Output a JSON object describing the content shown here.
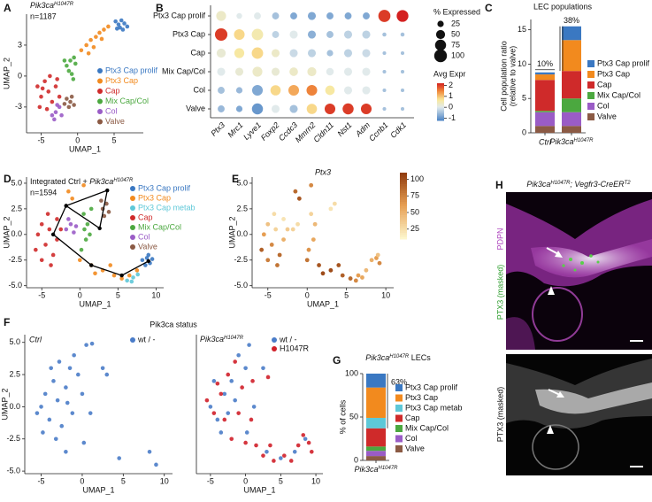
{
  "panel_labels": [
    "A",
    "B",
    "C",
    "D",
    "E",
    "F",
    "G",
    "H"
  ],
  "chart_data": [
    {
      "type": "scatter",
      "title": [
        "Pik3ca",
        "H1047R"
      ],
      "subtitle": "n=1187",
      "x_label": "UMAP_1",
      "y_label": "UMAP_2",
      "xlim": [
        -7,
        9
      ],
      "ylim": [
        -5.5,
        6
      ],
      "xticks": [
        -5,
        0,
        5
      ],
      "yticks": [
        -3,
        0,
        3
      ],
      "series": [
        {
          "name": "Ptx3 Cap prolif",
          "color": "#3a78c2",
          "x": [
            5.2,
            5.6,
            6.0,
            6.4,
            6.8,
            5.8,
            6.2,
            5.4
          ],
          "y": [
            5.3,
            5.0,
            5.4,
            5.1,
            4.8,
            4.7,
            4.5,
            4.6
          ]
        },
        {
          "name": "Ptx3 Cap",
          "color": "#f28a1e",
          "x": [
            0.5,
            1.2,
            1.8,
            2.5,
            3.0,
            3.6,
            4.2,
            2.2,
            1.5,
            3.3
          ],
          "y": [
            2.5,
            3.0,
            3.5,
            3.8,
            4.2,
            4.5,
            4.8,
            2.8,
            2.2,
            3.6
          ]
        },
        {
          "name": "Cap",
          "color": "#cf2a2a",
          "x": [
            -5.5,
            -5,
            -4.5,
            -4,
            -3.5,
            -3,
            -2.5,
            -5.2,
            -4.2,
            -3.8,
            -2.8,
            -4.8
          ],
          "y": [
            -1,
            -2,
            -0.5,
            -1.5,
            -2.5,
            -1,
            -2,
            -3,
            -3.2,
            0,
            -0.3,
            -1.2
          ]
        },
        {
          "name": "Mix Cap/Col",
          "color": "#4ba83f",
          "x": [
            -1.5,
            -1.0,
            -0.5,
            -1.2,
            -0.8,
            -0.3,
            -1.8,
            -0.6
          ],
          "y": [
            1.0,
            1.5,
            1.8,
            0.5,
            0.2,
            1.2,
            1.5,
            -0.3
          ]
        },
        {
          "name": "Col",
          "color": "#9a5cc6",
          "x": [
            -3.5,
            -3,
            -2.5,
            -2.2,
            -3.2,
            -2.8
          ],
          "y": [
            -3.8,
            -3.5,
            -3,
            -3.8,
            -4.2,
            -2.8
          ]
        },
        {
          "name": "Valve",
          "color": "#8b5a44",
          "x": [
            -1.5,
            -1,
            -0.5,
            -1.2,
            -0.8,
            -1.8
          ],
          "y": [
            -2.2,
            -2.5,
            -2.8,
            -3,
            -2,
            -2.7
          ]
        }
      ]
    },
    {
      "type": "dot",
      "categories": [
        "Ptx3",
        "Mrc1",
        "Lyve1",
        "Foxp2",
        "Ccdc3",
        "Mmrn2",
        "Cldn11",
        "Nst1",
        "Adm",
        "Ccnb1",
        "Cdk1"
      ],
      "size_title": "% Expressed",
      "size_ticks": [
        25,
        50,
        75,
        100
      ],
      "color_title": "Avg Expr",
      "color_lim": [
        -1.2,
        2.2
      ],
      "color_ticks": [
        -1,
        0,
        1,
        2
      ],
      "series": [
        {
          "name": "Ptx3 Cap prolif",
          "values": [
            0.3,
            0,
            0,
            -0.5,
            -0.8,
            -0.8,
            -0.8,
            -0.8,
            -0.8,
            2,
            2.2
          ],
          "pct": [
            60,
            20,
            30,
            30,
            30,
            40,
            30,
            30,
            30,
            90,
            85
          ]
        },
        {
          "name": "Ptx3 Cap",
          "values": [
            2,
            0.8,
            0.5,
            -0.3,
            0,
            -0.7,
            -0.5,
            -0.3,
            -0.3,
            -0.5,
            -0.5
          ],
          "pct": [
            95,
            70,
            80,
            30,
            40,
            40,
            30,
            40,
            40,
            10,
            10
          ]
        },
        {
          "name": "Cap",
          "values": [
            0.2,
            0.6,
            0.8,
            0.3,
            -0.2,
            -0.3,
            -0.5,
            -0.3,
            -0.2,
            -0.5,
            -0.5
          ],
          "pct": [
            50,
            60,
            80,
            40,
            40,
            40,
            25,
            40,
            40,
            8,
            8
          ]
        },
        {
          "name": "Mix Cap/Col",
          "values": [
            0,
            0.2,
            0.3,
            0.2,
            0.3,
            0.3,
            0,
            0,
            0,
            -0.5,
            -0.5
          ],
          "pct": [
            40,
            40,
            60,
            40,
            45,
            50,
            35,
            40,
            40,
            8,
            8
          ]
        },
        {
          "name": "Col",
          "values": [
            -0.5,
            -0.6,
            -0.8,
            0.8,
            1.2,
            1.5,
            0.6,
            0,
            0,
            -0.5,
            -0.5
          ],
          "pct": [
            30,
            25,
            70,
            65,
            70,
            70,
            55,
            40,
            40,
            8,
            8
          ]
        },
        {
          "name": "Valve",
          "values": [
            -0.6,
            -0.8,
            -1,
            0,
            -0.5,
            0.8,
            2,
            2,
            2,
            -0.5,
            -0.5
          ],
          "pct": [
            30,
            25,
            75,
            40,
            40,
            65,
            70,
            75,
            70,
            8,
            8
          ]
        }
      ]
    },
    {
      "type": "stacked_bar",
      "title": "LEC populations",
      "y_label": [
        "Cell population ratio",
        "(relative to valve)"
      ],
      "categories": [
        "Ctrl",
        [
          "Pik3ca",
          "H1047R"
        ]
      ],
      "ylim": [
        0,
        16.5
      ],
      "yticks": [
        0,
        5,
        10,
        15
      ],
      "annotations": [
        "10%",
        "38%"
      ],
      "series": [
        {
          "name": "Valve",
          "color": "#8b5a44",
          "values": [
            1,
            1
          ]
        },
        {
          "name": "Col",
          "color": "#9a5cc6",
          "values": [
            2,
            2
          ]
        },
        {
          "name": "Mix Cap/Col",
          "color": "#4ba83f",
          "values": [
            0.2,
            2
          ]
        },
        {
          "name": "Cap",
          "color": "#cf2a2a",
          "values": [
            4.5,
            4
          ]
        },
        {
          "name": "Ptx3 Cap",
          "color": "#f28a1e",
          "values": [
            0.8,
            4.5
          ]
        },
        {
          "name": "Ptx3 Cap prolif",
          "color": "#3a78c2",
          "values": [
            0.3,
            2
          ]
        }
      ]
    },
    {
      "type": "scatter",
      "title": [
        "Integrated Ctrl + ",
        "Pik3ca",
        "H1047R"
      ],
      "subtitle": "n=1594",
      "x_label": "UMAP_1",
      "y_label": "UMAP_2",
      "xlim": [
        -7,
        11
      ],
      "ylim": [
        -5.2,
        5.6
      ],
      "xticks": [
        -5,
        0,
        5,
        10
      ],
      "yticks": [
        {
          "value": -5,
          "label": "-5.0"
        },
        -2.5,
        {
          "value": 0,
          "label": "0.0"
        },
        2.5,
        {
          "value": 5,
          "label": "5.0"
        }
      ],
      "series": [
        {
          "name": "Ptx3 Cap prolif",
          "color": "#3a78c2",
          "x": [
            8.2,
            8.8,
            9.2,
            8.6,
            9.5,
            9
          ],
          "y": [
            -2.5,
            -2.3,
            -2.8,
            -3,
            -2.4,
            -2
          ]
        },
        {
          "name": "Ptx3 Cap",
          "color": "#f28a1e",
          "x": [
            0,
            1.5,
            3,
            4.5,
            5.5,
            6.5,
            7.5,
            2,
            4,
            -1,
            0.5,
            -1.5
          ],
          "y": [
            -2.5,
            -3,
            -3.5,
            -4,
            -4.3,
            -4,
            -3.5,
            -3.8,
            -3,
            3.5,
            4.8,
            4.2
          ]
        },
        {
          "name": "Ptx3 Cap metab",
          "color": "#5ec8d8",
          "x": [
            6.2,
            7,
            7.6,
            6.8
          ],
          "y": [
            -4.5,
            -4.2,
            -3.9,
            -4.6
          ]
        },
        {
          "name": "Cap",
          "color": "#cf2a2a",
          "x": [
            -5.5,
            -5,
            -4.5,
            -4,
            -3.5,
            -3,
            -5,
            -4.2,
            -3,
            -2.5,
            -5.8,
            -3.8
          ],
          "y": [
            0,
            1,
            -1,
            0.5,
            -2,
            1.5,
            -2.5,
            2,
            -0.5,
            0.5,
            -1.5,
            -3
          ]
        },
        {
          "name": "Mix Cap/Col",
          "color": "#4ba83f",
          "x": [
            0.5,
            1,
            0.8,
            1.3,
            0.2,
            1.5,
            0.6
          ],
          "y": [
            2,
            1,
            -0.5,
            0,
            -1.5,
            2.5,
            0.5
          ]
        },
        {
          "name": "Col",
          "color": "#9a5cc6",
          "x": [
            -1.8,
            -1.2,
            -0.8,
            -1.5,
            -0.5
          ],
          "y": [
            0.5,
            1,
            0.2,
            1.5,
            0.8
          ]
        },
        {
          "name": "Valve",
          "color": "#8b5a44",
          "x": [
            3,
            3.5,
            2.8,
            3.8,
            3.2
          ],
          "y": [
            2.5,
            3,
            3.3,
            2.2,
            1.8
          ]
        }
      ],
      "trajectory": {
        "x": [
          9,
          5.5,
          1.5,
          -3.5,
          -1.8,
          3.6,
          2.6,
          -1.8
        ],
        "y": [
          -2.6,
          -4,
          -3,
          0,
          2.8,
          4.3,
          0.6,
          2.8
        ]
      }
    },
    {
      "type": "feature",
      "title": "Ptx3",
      "x_label": "UMAP_1",
      "y_label": "UMAP_2",
      "xlim": [
        -7,
        11
      ],
      "ylim": [
        -5.2,
        5.6
      ],
      "xticks": [
        -5,
        0,
        5,
        10
      ],
      "yticks": [
        {
          "value": -5,
          "label": "-5.0"
        },
        -2.5,
        {
          "value": 0,
          "label": "0.0"
        },
        2.5,
        {
          "value": 5,
          "label": "5.0"
        }
      ],
      "color_lim": [
        10,
        110
      ],
      "color_ticks": [
        25,
        50,
        75,
        100
      ],
      "x": [
        -5.5,
        -5,
        -4.5,
        -4,
        -3.5,
        -3,
        -5,
        -4.2,
        -3,
        -2.5,
        -5.8,
        -3.8,
        -1.8,
        -1.2,
        0.5,
        1,
        0.8,
        0.2,
        -1,
        0.5,
        -1.5,
        3,
        3.5,
        0,
        1.5,
        3,
        4.5,
        5.5,
        6.5,
        7.5,
        2,
        4,
        8.2,
        8.8,
        9.2,
        9,
        6.2,
        7
      ],
      "y": [
        0,
        1,
        -1,
        0.5,
        -2,
        1.5,
        -2.5,
        2,
        -0.5,
        0.5,
        -1.5,
        -3,
        0.5,
        1,
        2,
        1,
        -0.5,
        -1.5,
        3.5,
        4.8,
        4.2,
        2.5,
        3,
        -2.5,
        -3,
        -3.5,
        -4,
        -4.3,
        -4,
        -3.5,
        -3.8,
        -3,
        -2.5,
        -2.3,
        -2.8,
        -2,
        -4.5,
        -4.2
      ],
      "values": [
        60,
        40,
        70,
        30,
        85,
        20,
        75,
        25,
        50,
        35,
        90,
        80,
        30,
        25,
        30,
        45,
        55,
        65,
        95,
        70,
        85,
        20,
        25,
        80,
        95,
        100,
        90,
        85,
        60,
        45,
        100,
        95,
        50,
        60,
        70,
        40,
        70,
        55
      ]
    },
    {
      "type": "scatter",
      "title": "Pik3ca status",
      "subtitle": "Ctrl",
      "x_label": "UMAP_1",
      "y_label": "UMAP_2",
      "xlim": [
        -7,
        11
      ],
      "ylim": [
        -5.2,
        5.6
      ],
      "xticks": [
        -5,
        0,
        5,
        10
      ],
      "yticks": [
        {
          "value": -5,
          "label": "-5.0"
        },
        -2.5,
        {
          "value": 0,
          "label": "0.0"
        },
        2.5,
        {
          "value": 5,
          "label": "5.0"
        }
      ],
      "series": [
        {
          "name": "wt / -",
          "color": "#4a7cc8",
          "x": [
            -5,
            -4.5,
            -4,
            -3.5,
            -3,
            -2.5,
            -2,
            -1.5,
            -1,
            -0.5,
            0,
            -4.8,
            -3.8,
            -2.8,
            -1.2,
            0.5,
            1.2,
            2.5,
            3,
            -3.2,
            -2,
            -5.5,
            0.2,
            4.5,
            8.2,
            9,
            -1.8,
            1
          ],
          "y": [
            0,
            1,
            -1,
            2,
            0.5,
            -1.5,
            1.5,
            3,
            4,
            2.5,
            1,
            -2,
            3,
            3.5,
            -0.5,
            4.8,
            4.9,
            3,
            2.5,
            -2.5,
            -3.5,
            -0.5,
            -2.8,
            -4,
            -3.5,
            -4.5,
            0.3,
            -0.5
          ]
        }
      ]
    },
    {
      "type": "scatter",
      "subtitle": [
        "Pik3ca",
        "H1047R"
      ],
      "x_label": "UMAP_1",
      "xlim": [
        -7,
        11
      ],
      "ylim": [
        -5.2,
        5.6
      ],
      "xticks": [
        -5,
        0,
        5,
        10
      ],
      "series": [
        {
          "name": "wt / -",
          "color": "#4a7cc8",
          "x": [
            -5,
            -4,
            -3,
            -2,
            -1,
            0,
            0.5,
            2.5,
            1.2,
            -4.5,
            -3.5,
            -2.5,
            3,
            5,
            7,
            8.5,
            -1.5,
            0.2
          ],
          "y": [
            0,
            -1,
            1,
            2,
            4,
            3,
            4.8,
            3,
            0,
            2,
            -2,
            -0.5,
            -3.5,
            -4,
            -3.5,
            -2.5,
            0.5,
            -2
          ]
        },
        {
          "name": "H1047R",
          "color": "#d0202a",
          "x": [
            -5.5,
            -4.5,
            -3.5,
            -2.5,
            -1.5,
            -0.5,
            0.8,
            1.5,
            2.5,
            4,
            5.5,
            6.5,
            7.5,
            8.2,
            9,
            9.4,
            -3,
            -4,
            -2,
            0,
            3.5,
            -1,
            3.2,
            1
          ],
          "y": [
            0.5,
            -0.5,
            1,
            2.5,
            3.5,
            1.5,
            -1,
            -3,
            -3.8,
            -4.2,
            -3.8,
            -4.2,
            -3,
            -2.2,
            -2.8,
            -3.5,
            -1,
            1.8,
            -2.5,
            -2.8,
            -3,
            -0.5,
            2.3,
            2
          ]
        }
      ]
    },
    {
      "type": "stacked_bar",
      "title": [
        "Pik3ca",
        "H1047R",
        " LECs"
      ],
      "y_label": [
        "% of cells"
      ],
      "categories": [
        [
          "Pik3ca",
          "H1047R"
        ]
      ],
      "ylim": [
        0,
        100
      ],
      "yticks": [
        0,
        50,
        100
      ],
      "annotations": [
        "63%"
      ],
      "series": [
        {
          "name": "Valve",
          "color": "#8b5a44",
          "values": [
            5
          ]
        },
        {
          "name": "Col",
          "color": "#9a5cc6",
          "values": [
            6
          ]
        },
        {
          "name": "Mix Cap/Col",
          "color": "#4ba83f",
          "values": [
            5
          ]
        },
        {
          "name": "Cap",
          "color": "#cf2a2a",
          "values": [
            21
          ]
        },
        {
          "name": "Ptx3 Cap metab",
          "color": "#5ec8d8",
          "values": [
            12
          ]
        },
        {
          "name": "Ptx3 Cap",
          "color": "#f28a1e",
          "values": [
            35
          ]
        },
        {
          "name": "Ptx3 Cap prolif",
          "color": "#3a78c2",
          "values": [
            16
          ]
        }
      ]
    }
  ],
  "image_panel": {
    "title": [
      "Pik3ca",
      "H1047R",
      "; Vegfr3-CreER",
      "T2"
    ],
    "channel_labels": [
      "PTX3 (masked)",
      "PDPN"
    ],
    "bottom_label": "PTX3 (masked)"
  }
}
